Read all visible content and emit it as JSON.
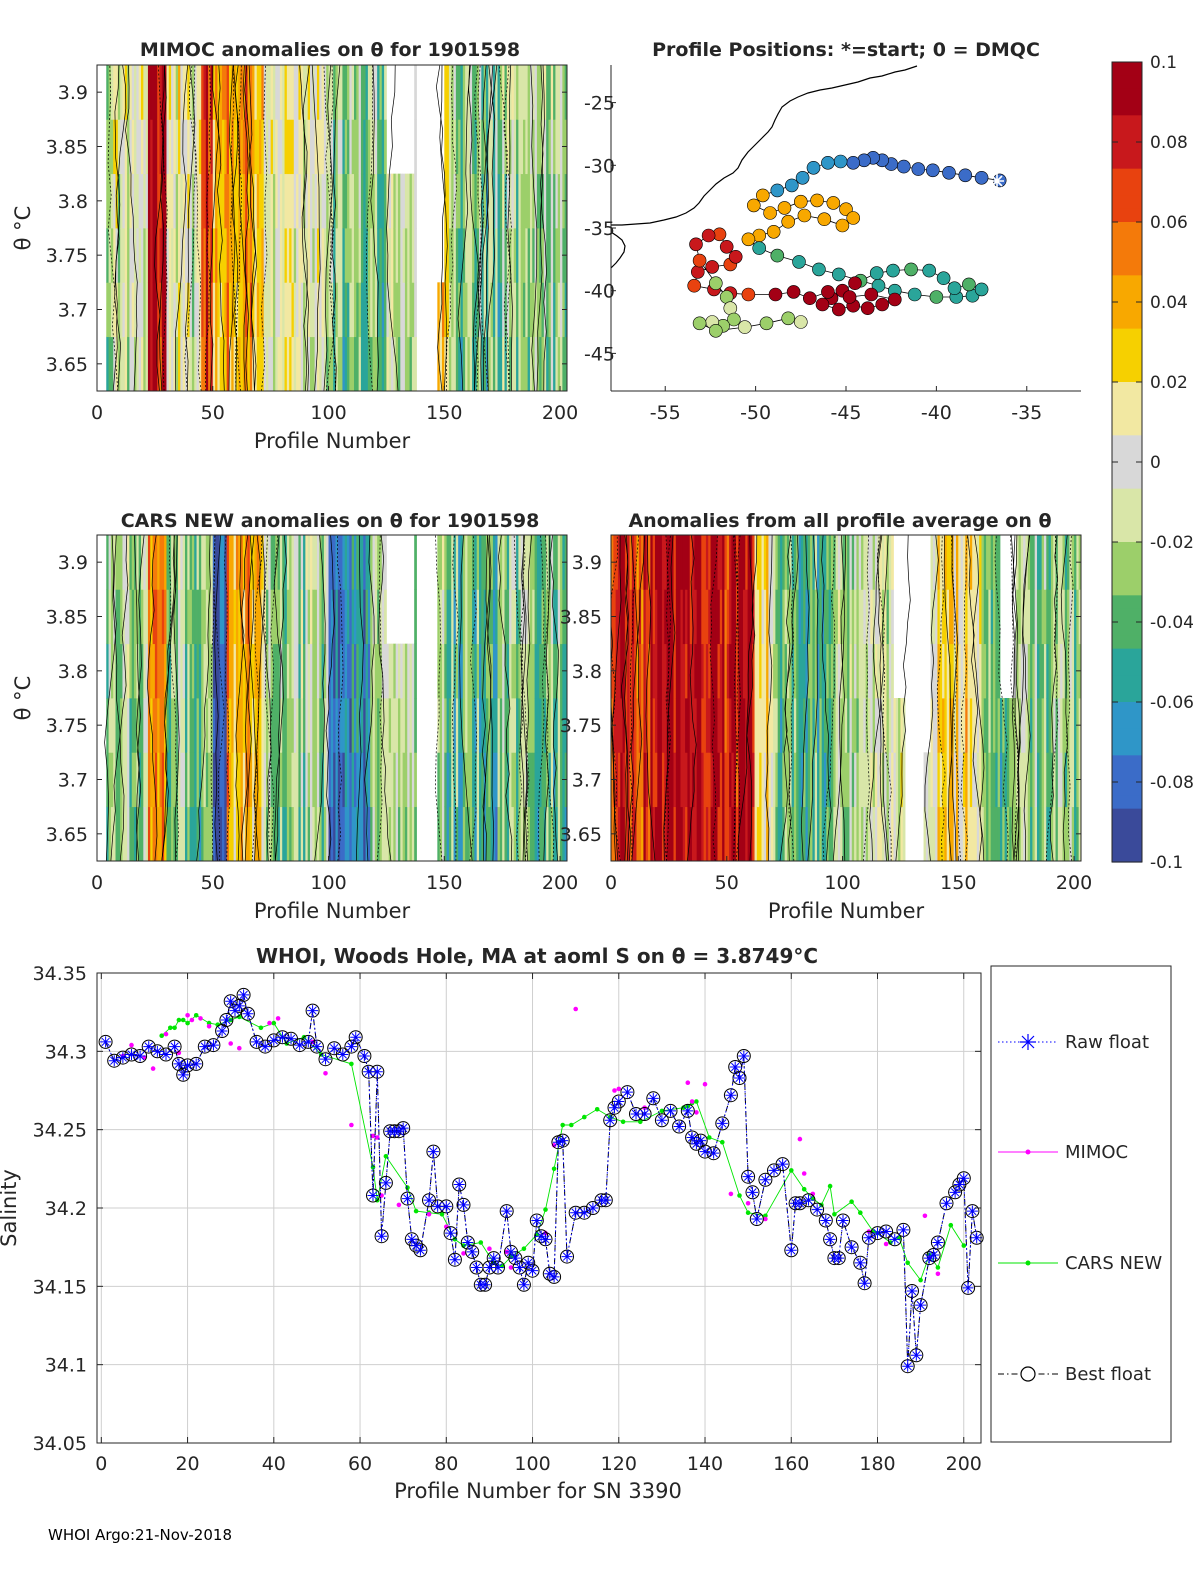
{
  "chart_data": [
    {
      "id": "mimoc",
      "type": "heatmap",
      "title": "MIMOC anomalies on θ  for 1901598",
      "xlabel": "Profile Number",
      "ylabel": "θ °C",
      "xlim": [
        0,
        203
      ],
      "ylim": [
        3.625,
        3.925
      ],
      "xticks": [
        0,
        50,
        100,
        150,
        200
      ],
      "yticks": [
        3.65,
        3.7,
        3.75,
        3.8,
        3.85,
        3.9
      ],
      "ytick_labels": [
        "3.65",
        "3.7",
        "3.75",
        "3.8",
        "3.85",
        "3.9"
      ]
    },
    {
      "id": "positions",
      "type": "scatter",
      "title": "Profile Positions: *=start; 0 = DMQC",
      "xlim": [
        -58,
        -32
      ],
      "ylim": [
        -48,
        -22
      ],
      "xticks": [
        -55,
        -50,
        -45,
        -40,
        -35
      ],
      "yticks": [
        -25,
        -30,
        -35,
        -40,
        -45
      ],
      "start_marker": "*"
    },
    {
      "id": "cars",
      "type": "heatmap",
      "title": "CARS NEW anomalies on θ for 1901598",
      "xlabel": "Profile Number",
      "ylabel": "θ °C",
      "xlim": [
        0,
        203
      ],
      "ylim": [
        3.625,
        3.925
      ],
      "xticks": [
        0,
        50,
        100,
        150,
        200
      ],
      "yticks": [
        3.65,
        3.7,
        3.75,
        3.8,
        3.85,
        3.9
      ],
      "ytick_labels": [
        "3.65",
        "3.7",
        "3.75",
        "3.8",
        "3.85",
        "3.9"
      ]
    },
    {
      "id": "allavg",
      "type": "heatmap",
      "title": "Anomalies from all profile average on θ",
      "xlabel": "Profile Number",
      "xlim": [
        0,
        203
      ],
      "ylim": [
        3.625,
        3.925
      ],
      "xticks": [
        0,
        50,
        100,
        150,
        200
      ],
      "yticks": [
        3.65,
        3.7,
        3.75,
        3.8,
        3.85,
        3.9
      ],
      "ytick_labels": [
        "3.65",
        "3.7",
        "3.75",
        "3.8",
        "3.85",
        "3.9"
      ]
    },
    {
      "id": "colorbar",
      "type": "colorbar",
      "clim": [
        -0.1,
        0.1
      ],
      "ticks": [
        0.1,
        0.08,
        0.06,
        0.04,
        0.02,
        0,
        -0.02,
        -0.04,
        -0.06,
        -0.08,
        -0.1
      ],
      "tick_labels": [
        "0.1",
        "0.08",
        "0.06",
        "0.04",
        "0.02",
        "0",
        "-0.02",
        "-0.04",
        "-0.06",
        "-0.08",
        "-0.1"
      ],
      "colors": [
        "#3a4a9a",
        "#3b6cc8",
        "#2f96c8",
        "#2aa59a",
        "#4fb067",
        "#9ccf6a",
        "#d9e6a8",
        "#d8d8d8",
        "#f2e8a2",
        "#f6d000",
        "#f8a800",
        "#f47a0a",
        "#e8420f",
        "#c8181c",
        "#a30015"
      ]
    },
    {
      "id": "salinity",
      "type": "line",
      "title": "WHOI, Woods Hole, MA at aoml S on θ = 3.8749°C",
      "xlabel": "Profile Number for SN 3390",
      "ylabel": "Salinity",
      "xlim": [
        -1,
        204
      ],
      "ylim": [
        34.05,
        34.35
      ],
      "xticks": [
        0,
        20,
        40,
        60,
        80,
        100,
        120,
        140,
        160,
        180,
        200
      ],
      "yticks": [
        34.05,
        34.1,
        34.15,
        34.2,
        34.25,
        34.3,
        34.35
      ],
      "ytick_labels": [
        "34.05",
        "34.1",
        "34.15",
        "34.2",
        "34.25",
        "34.3",
        "34.35"
      ],
      "legend": [
        "Raw float",
        "MIMOC",
        "CARS NEW",
        "Best float"
      ],
      "legend_position": "outside-right",
      "series": [
        {
          "name": "Raw float",
          "color": "#0000ff",
          "x": [
            1,
            3,
            5,
            7,
            9,
            11,
            13,
            15,
            17,
            18,
            19,
            20,
            22,
            24,
            26,
            28,
            29,
            30,
            31,
            32,
            33,
            34,
            36,
            38,
            40,
            42,
            44,
            46,
            48,
            49,
            50,
            52,
            54,
            56,
            58,
            59,
            61,
            62,
            63,
            64,
            65,
            66,
            67,
            68,
            69,
            70,
            71,
            72,
            73,
            74,
            76,
            77,
            78,
            80,
            81,
            82,
            83,
            84,
            85,
            86,
            87,
            88,
            89,
            90,
            91,
            92,
            94,
            95,
            96,
            97,
            98,
            99,
            100,
            101,
            102,
            103,
            104,
            105,
            106,
            107,
            108,
            110,
            112,
            114,
            116,
            117,
            118,
            119,
            120,
            122,
            124,
            126,
            128,
            130,
            132,
            134,
            136,
            137,
            138,
            139,
            140,
            142,
            144,
            146,
            147,
            148,
            149,
            150,
            151,
            152,
            154,
            156,
            158,
            160,
            161,
            162,
            164,
            166,
            168,
            169,
            170,
            171,
            172,
            174,
            176,
            177,
            178,
            180,
            182,
            184,
            186,
            187,
            188,
            189,
            190,
            192,
            193,
            194,
            196,
            198,
            199,
            200,
            201,
            202,
            203
          ],
          "y": [
            34.306,
            34.294,
            34.296,
            34.298,
            34.297,
            34.303,
            34.3,
            34.298,
            34.303,
            34.292,
            34.285,
            34.291,
            34.292,
            34.303,
            34.304,
            34.313,
            34.32,
            34.332,
            34.326,
            34.329,
            34.336,
            34.324,
            34.306,
            34.303,
            34.307,
            34.309,
            34.308,
            34.304,
            34.306,
            34.326,
            34.303,
            34.295,
            34.302,
            34.298,
            34.303,
            34.309,
            34.297,
            34.287,
            34.208,
            34.287,
            34.182,
            34.216,
            34.249,
            34.249,
            34.249,
            34.251,
            34.206,
            34.18,
            34.176,
            34.173,
            34.205,
            34.236,
            34.201,
            34.201,
            34.184,
            34.167,
            34.215,
            34.202,
            34.178,
            34.172,
            34.162,
            34.151,
            34.151,
            34.162,
            34.168,
            34.162,
            34.198,
            34.172,
            34.168,
            34.162,
            34.151,
            34.165,
            34.16,
            34.192,
            34.182,
            34.18,
            34.158,
            34.156,
            34.242,
            34.243,
            34.169,
            34.197,
            34.197,
            34.2,
            34.205,
            34.205,
            34.256,
            34.264,
            34.268,
            34.274,
            34.26,
            34.26,
            34.27,
            34.256,
            34.262,
            34.252,
            34.262,
            34.245,
            34.241,
            34.243,
            34.236,
            34.235,
            34.254,
            34.272,
            34.29,
            34.283,
            34.297,
            34.22,
            34.21,
            34.193,
            34.218,
            34.224,
            34.228,
            34.173,
            34.203,
            34.203,
            34.205,
            34.199,
            34.192,
            34.18,
            34.168,
            34.168,
            34.192,
            34.175,
            34.165,
            34.152,
            34.181,
            34.184,
            34.185,
            34.18,
            34.186,
            34.099,
            34.147,
            34.106,
            34.138,
            34.168,
            34.17,
            34.178,
            34.203,
            34.21,
            34.215,
            34.219,
            34.149,
            34.198,
            34.181
          ]
        },
        {
          "name": "MIMOC",
          "color": "#ff00ff",
          "x": [
            5,
            7,
            10,
            12,
            15,
            18,
            20,
            21,
            23,
            25,
            30,
            32,
            39,
            41,
            49,
            52,
            58,
            63,
            64,
            65,
            69,
            76,
            80,
            84,
            90,
            94,
            95,
            103,
            105,
            110,
            119,
            120,
            126,
            136,
            137,
            138,
            140,
            146,
            150,
            154,
            162,
            163,
            165,
            178,
            182,
            191,
            192,
            194
          ],
          "y": [
            34.297,
            34.304,
            34.296,
            34.289,
            34.311,
            34.299,
            34.323,
            34.32,
            34.321,
            34.316,
            34.305,
            34.302,
            34.318,
            34.321,
            34.306,
            34.286,
            34.253,
            34.246,
            34.245,
            34.208,
            34.202,
            34.196,
            34.188,
            34.171,
            34.174,
            34.172,
            34.162,
            34.184,
            34.24,
            34.327,
            34.275,
            34.276,
            34.264,
            34.28,
            34.268,
            34.261,
            34.279,
            34.209,
            34.203,
            34.193,
            34.244,
            34.222,
            34.209,
            34.185,
            34.177,
            34.195,
            34.168,
            34.158
          ]
        },
        {
          "name": "CARS NEW",
          "color": "#00e600",
          "x": [
            14,
            16,
            17,
            18,
            19,
            20,
            22,
            25,
            27,
            30,
            32,
            37,
            40,
            43,
            47,
            51,
            58,
            63,
            64,
            66,
            71,
            73,
            76,
            79,
            82,
            84,
            88,
            91,
            93,
            95,
            98,
            101,
            103,
            105,
            107,
            109,
            112,
            115,
            118,
            121,
            125,
            130,
            135,
            136,
            137,
            138,
            141,
            144,
            148,
            150,
            154,
            160,
            163,
            165,
            167,
            169,
            170,
            174,
            176,
            179,
            180,
            183,
            185,
            187,
            190,
            192,
            194,
            197,
            200
          ],
          "y": [
            34.31,
            34.315,
            34.315,
            34.32,
            34.32,
            34.318,
            34.323,
            34.318,
            34.317,
            34.32,
            34.322,
            34.315,
            34.318,
            34.305,
            34.309,
            34.298,
            34.292,
            34.226,
            34.205,
            34.233,
            34.213,
            34.198,
            34.197,
            34.196,
            34.18,
            34.176,
            34.178,
            34.165,
            34.163,
            34.169,
            34.174,
            34.183,
            34.199,
            34.225,
            34.253,
            34.253,
            34.258,
            34.263,
            34.258,
            34.255,
            34.255,
            34.262,
            34.264,
            34.265,
            34.267,
            34.268,
            34.245,
            34.242,
            34.208,
            34.197,
            34.195,
            34.224,
            34.212,
            34.206,
            34.202,
            34.214,
            34.196,
            34.204,
            34.197,
            34.185,
            34.184,
            34.178,
            34.181,
            34.165,
            34.154,
            34.17,
            34.162,
            34.189,
            34.176
          ]
        },
        {
          "name": "Best float",
          "color": "#000000",
          "x": [
            1,
            3,
            5,
            7,
            9,
            11,
            13,
            15,
            17,
            18,
            19,
            20,
            22,
            24,
            26,
            28,
            29,
            30,
            31,
            32,
            33,
            34,
            36,
            38,
            40,
            42,
            44,
            46,
            48,
            49,
            50,
            52,
            54,
            56,
            58,
            59,
            61,
            62,
            63,
            64,
            65,
            66,
            67,
            68,
            69,
            70,
            71,
            72,
            73,
            74,
            76,
            77,
            78,
            80,
            81,
            82,
            83,
            84,
            85,
            86,
            87,
            88,
            89,
            90,
            91,
            92,
            94,
            95,
            96,
            97,
            98,
            99,
            100,
            101,
            102,
            103,
            104,
            105,
            106,
            107,
            108,
            110,
            112,
            114,
            116,
            117,
            118,
            119,
            120,
            122,
            124,
            126,
            128,
            130,
            132,
            134,
            136,
            137,
            138,
            139,
            140,
            142,
            144,
            146,
            147,
            148,
            149,
            150,
            151,
            152,
            154,
            156,
            158,
            160,
            161,
            162,
            164,
            166,
            168,
            169,
            170,
            171,
            172,
            174,
            176,
            177,
            178,
            180,
            182,
            184,
            186,
            187,
            188,
            189,
            190,
            192,
            193,
            194,
            196,
            198,
            199,
            200,
            201,
            202,
            203
          ],
          "y": [
            34.306,
            34.294,
            34.296,
            34.298,
            34.297,
            34.303,
            34.3,
            34.298,
            34.303,
            34.292,
            34.285,
            34.291,
            34.292,
            34.303,
            34.304,
            34.313,
            34.32,
            34.332,
            34.326,
            34.329,
            34.336,
            34.324,
            34.306,
            34.303,
            34.307,
            34.309,
            34.308,
            34.304,
            34.306,
            34.326,
            34.303,
            34.295,
            34.302,
            34.298,
            34.303,
            34.309,
            34.297,
            34.287,
            34.208,
            34.287,
            34.182,
            34.216,
            34.249,
            34.249,
            34.249,
            34.251,
            34.206,
            34.18,
            34.176,
            34.173,
            34.205,
            34.236,
            34.201,
            34.201,
            34.184,
            34.167,
            34.215,
            34.202,
            34.178,
            34.172,
            34.162,
            34.151,
            34.151,
            34.162,
            34.168,
            34.162,
            34.198,
            34.172,
            34.168,
            34.162,
            34.151,
            34.165,
            34.16,
            34.192,
            34.182,
            34.18,
            34.158,
            34.156,
            34.242,
            34.243,
            34.169,
            34.197,
            34.197,
            34.2,
            34.205,
            34.205,
            34.256,
            34.264,
            34.268,
            34.274,
            34.26,
            34.26,
            34.27,
            34.256,
            34.262,
            34.252,
            34.262,
            34.245,
            34.241,
            34.243,
            34.236,
            34.235,
            34.254,
            34.272,
            34.29,
            34.283,
            34.297,
            34.22,
            34.21,
            34.193,
            34.218,
            34.224,
            34.228,
            34.173,
            34.203,
            34.203,
            34.205,
            34.199,
            34.192,
            34.18,
            34.168,
            34.168,
            34.192,
            34.175,
            34.165,
            34.152,
            34.181,
            34.184,
            34.185,
            34.18,
            34.186,
            34.099,
            34.147,
            34.106,
            34.138,
            34.168,
            34.17,
            34.178,
            34.203,
            34.21,
            34.215,
            34.219,
            34.149,
            34.198,
            34.181
          ]
        }
      ]
    }
  ],
  "footer": "WHOI Argo:21-Nov-2018"
}
